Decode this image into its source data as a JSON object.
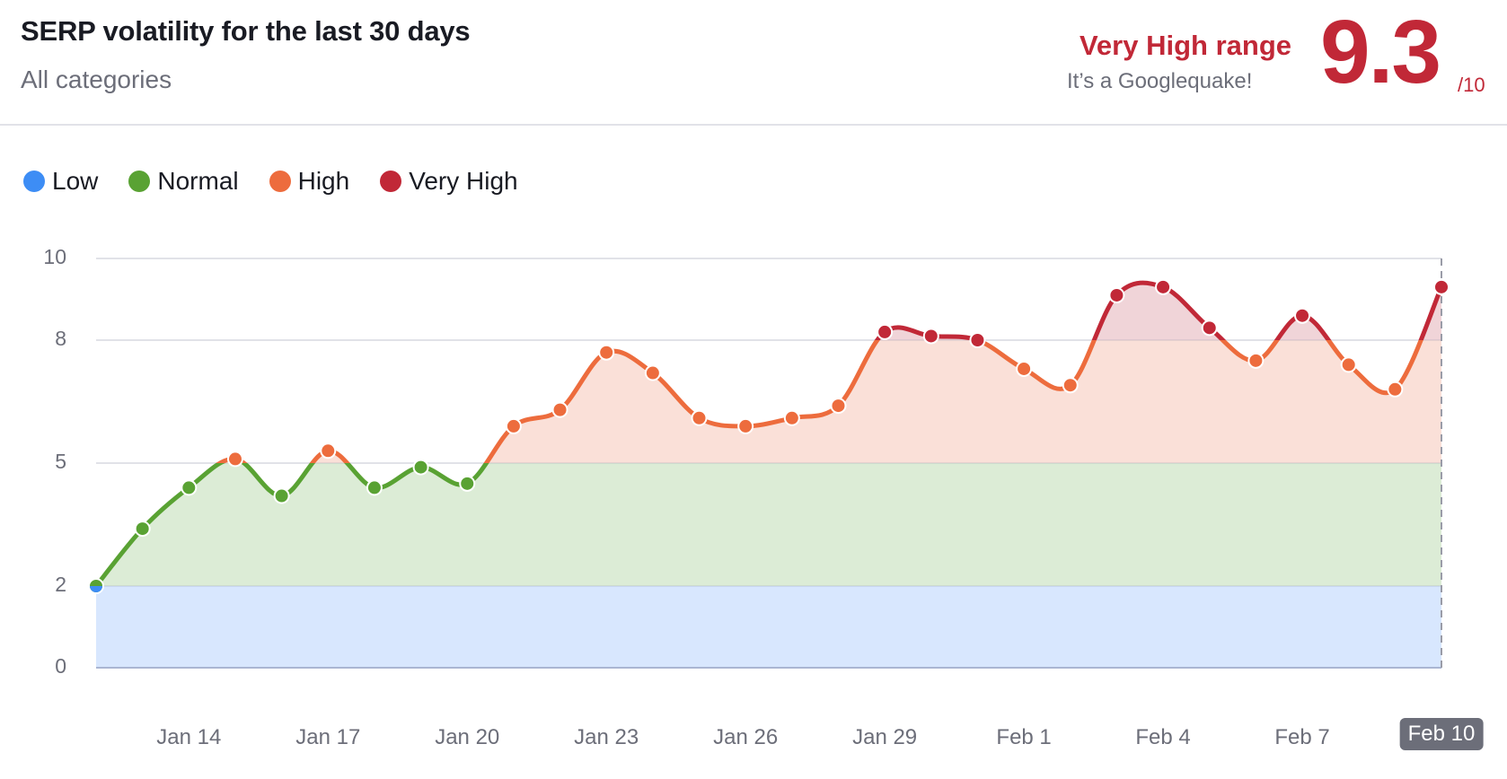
{
  "header": {
    "title": "SERP volatility for the last 30 days",
    "subtitle": "All categories",
    "range_label": "Very High range",
    "range_sub": "It’s a Googlequake!",
    "score": "9.3",
    "score_max": "/10"
  },
  "legend": [
    {
      "label": "Low",
      "color": "#3d8df5"
    },
    {
      "label": "Normal",
      "color": "#59a233"
    },
    {
      "label": "High",
      "color": "#ed6c3d"
    },
    {
      "label": "Very High",
      "color": "#c12837"
    }
  ],
  "colors": {
    "low": "#3d8df5",
    "normal": "#59a233",
    "high": "#ed6c3d",
    "very_high": "#c12837",
    "low_fill": "#d8e7fe",
    "normal_fill": "#dcecd6",
    "high_fill": "#fae0d8",
    "very_high_fill": "#f0d4d8"
  },
  "chart_data": {
    "type": "area",
    "title": "SERP volatility for the last 30 days",
    "subtitle": "All categories",
    "xlabel": "",
    "ylabel": "",
    "ylim": [
      0,
      10
    ],
    "y_ticks": [
      0,
      2,
      5,
      8,
      10
    ],
    "x_tick_labels": [
      "Jan 14",
      "Jan 17",
      "Jan 20",
      "Jan 23",
      "Jan 26",
      "Jan 29",
      "Feb 1",
      "Feb 4",
      "Feb 7",
      "Feb 10"
    ],
    "highlighted_x": "Feb 10",
    "grid": true,
    "legend_position": "top-left",
    "bands": [
      {
        "name": "Low",
        "from": 0,
        "to": 2
      },
      {
        "name": "Normal",
        "from": 2,
        "to": 5
      },
      {
        "name": "High",
        "from": 5,
        "to": 8
      },
      {
        "name": "Very High",
        "from": 8,
        "to": 10
      }
    ],
    "x": [
      "Jan 12",
      "Jan 13",
      "Jan 14",
      "Jan 15",
      "Jan 16",
      "Jan 17",
      "Jan 18",
      "Jan 19",
      "Jan 20",
      "Jan 21",
      "Jan 22",
      "Jan 23",
      "Jan 24",
      "Jan 25",
      "Jan 26",
      "Jan 27",
      "Jan 28",
      "Jan 29",
      "Jan 30",
      "Jan 31",
      "Feb 1",
      "Feb 2",
      "Feb 3",
      "Feb 4",
      "Feb 5",
      "Feb 6",
      "Feb 7",
      "Feb 8",
      "Feb 9",
      "Feb 10"
    ],
    "series": [
      {
        "name": "Volatility",
        "values": [
          2.0,
          3.4,
          4.4,
          5.1,
          4.2,
          5.3,
          4.4,
          4.9,
          4.5,
          5.9,
          6.3,
          7.7,
          7.2,
          6.1,
          5.9,
          6.1,
          6.4,
          8.2,
          8.1,
          8.0,
          7.3,
          6.9,
          9.1,
          9.3,
          8.3,
          7.5,
          8.6,
          7.4,
          6.8,
          9.3
        ]
      }
    ]
  }
}
